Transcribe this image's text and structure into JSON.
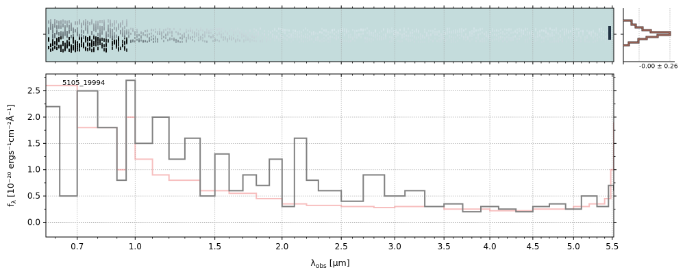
{
  "chart_data": {
    "type": "line",
    "object_label": "5105_19994",
    "xlabel_main": "λ",
    "xlabel_sub": "obs",
    "xlabel_unit": " [μm]",
    "ylabel_main": "f",
    "ylabel_sub": "λ",
    "ylabel_rest": "[10⁻²⁰ ergs⁻¹cm⁻²Å⁻¹]",
    "x_tick_labels": [
      "0.7",
      "1.0",
      "1.5",
      "2.0",
      "2.5",
      "3.0",
      "3.5",
      "4.0",
      "4.5",
      "5.0",
      "5.5"
    ],
    "y_tick_labels": [
      "0.0",
      "0.5",
      "1.0",
      "1.5",
      "2.0",
      "2.5"
    ],
    "ylim": [
      -0.28,
      2.82
    ],
    "grid": true,
    "histogram_annotation": "-0.00 ± 0.26",
    "colors": {
      "flux": "#808080",
      "model": "#f08080",
      "image_bg": "#c4dcdc",
      "hist": "#8a4a3a",
      "grid": "#b0b0b0"
    },
    "series": [
      {
        "x": [
          0.56,
          0.62,
          0.7,
          0.8,
          0.9,
          0.95,
          1.0,
          1.1,
          1.2,
          1.3,
          1.4,
          1.5,
          1.6,
          1.7,
          1.8,
          1.9,
          2.0,
          2.1,
          2.2,
          2.3,
          2.5,
          2.7,
          2.9,
          3.1,
          3.3,
          3.5,
          3.7,
          3.9,
          4.1,
          4.3,
          4.5,
          4.7,
          4.9,
          5.1,
          5.3,
          5.45,
          5.52
        ],
        "values": [
          2.2,
          0.5,
          2.5,
          1.8,
          0.8,
          2.7,
          1.5,
          2.0,
          1.2,
          1.6,
          0.5,
          1.3,
          0.6,
          0.9,
          0.7,
          1.2,
          0.3,
          1.6,
          0.8,
          0.6,
          0.4,
          0.9,
          0.5,
          0.6,
          0.3,
          0.35,
          0.2,
          0.3,
          0.25,
          0.2,
          0.3,
          0.35,
          0.25,
          0.5,
          0.3,
          0.7,
          0.6
        ]
      },
      {
        "x": [
          0.56,
          0.7,
          0.9,
          0.95,
          1.0,
          1.1,
          1.2,
          1.4,
          1.6,
          1.8,
          2.0,
          2.2,
          2.5,
          2.8,
          3.0,
          3.5,
          4.0,
          4.5,
          5.0,
          5.2,
          5.4,
          5.48,
          5.52
        ],
        "values": [
          2.6,
          1.8,
          1.0,
          2.0,
          1.2,
          0.9,
          0.8,
          0.6,
          0.55,
          0.45,
          0.35,
          0.32,
          0.3,
          0.28,
          0.3,
          0.25,
          0.22,
          0.25,
          0.3,
          0.35,
          0.45,
          1.0,
          1.9
        ]
      }
    ]
  }
}
